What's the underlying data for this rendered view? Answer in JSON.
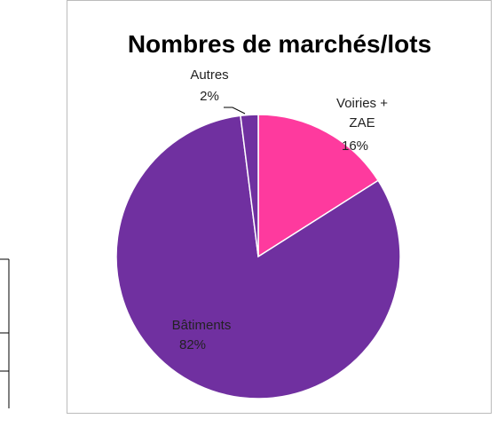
{
  "chart_data": {
    "type": "pie",
    "title": "Nombres de marchés/lots",
    "categories": [
      "Voiries + ZAE",
      "Bâtiments",
      "Autres"
    ],
    "values": [
      16,
      82,
      2
    ],
    "value_labels": [
      "16%",
      "82%",
      "2%"
    ],
    "colors": [
      "#fe3a9e",
      "#7030a0",
      "#7030a0"
    ]
  }
}
